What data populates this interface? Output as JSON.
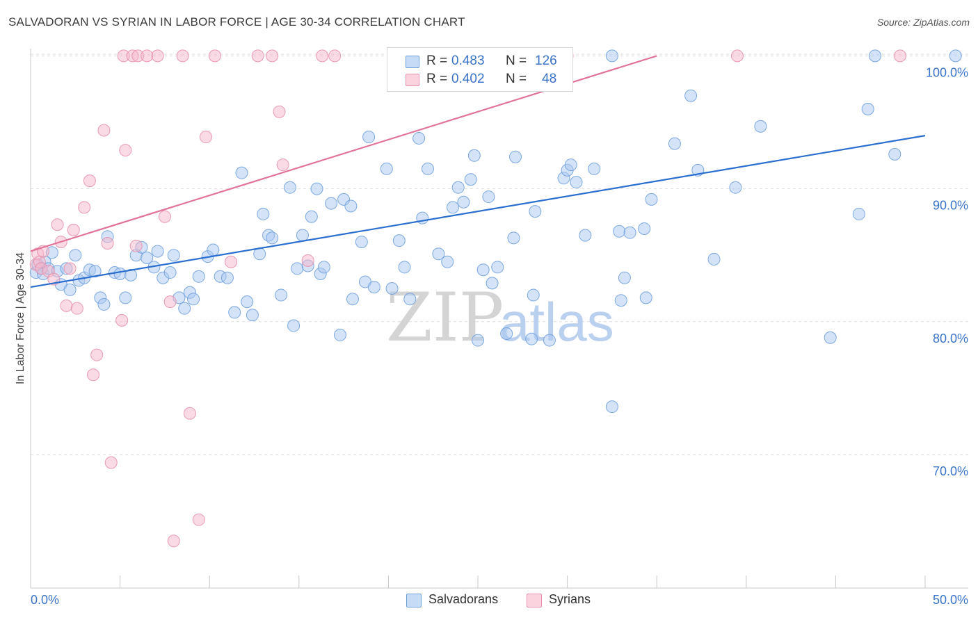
{
  "title": "SALVADORAN VS SYRIAN IN LABOR FORCE | AGE 30-34 CORRELATION CHART",
  "source": "Source: ZipAtlas.com",
  "watermark": {
    "zip": "ZIP",
    "atlas": "atlas"
  },
  "legend_top": [
    {
      "r_label": "R =",
      "r_value": "0.483",
      "n_label": "N =",
      "n_value": "126",
      "color": "#a9c8f0"
    },
    {
      "r_label": "R =",
      "r_value": "0.402",
      "n_label": "N =",
      "n_value": "48",
      "color": "#f5b8cb"
    }
  ],
  "legend_bottom": [
    {
      "label": "Salvadorans",
      "color": "#a9c8f0"
    },
    {
      "label": "Syrians",
      "color": "#f5b8cb"
    }
  ],
  "chart_data": {
    "type": "scatter",
    "title": "SALVADORAN VS SYRIAN IN LABOR FORCE | AGE 30-34 CORRELATION CHART",
    "xlabel": "",
    "ylabel": "In Labor Force | Age 30-34",
    "xlim": [
      0,
      50
    ],
    "ylim": [
      60,
      101
    ],
    "x_ticks": [
      "0.0%",
      "50.0%"
    ],
    "y_ticks": [
      {
        "value": 70,
        "label": "70.0%"
      },
      {
        "value": 80,
        "label": "80.0%"
      },
      {
        "value": 90,
        "label": "90.0%"
      },
      {
        "value": 100,
        "label": "100.0%"
      }
    ],
    "grid": true,
    "legend_position": "bottom",
    "series": [
      {
        "name": "Salvadorans",
        "color": "#6fa0de",
        "fill": "#a9c8f0",
        "trend": {
          "x": [
            0,
            50
          ],
          "y": [
            82.6,
            94.0
          ]
        },
        "points": [
          [
            0.3,
            83.7
          ],
          [
            0.4,
            84.3
          ],
          [
            0.6,
            84.0
          ],
          [
            0.7,
            83.6
          ],
          [
            0.8,
            84.5
          ],
          [
            1.0,
            84.0
          ],
          [
            1.2,
            85.2
          ],
          [
            1.5,
            83.8
          ],
          [
            1.7,
            82.8
          ],
          [
            2.0,
            84.0
          ],
          [
            2.2,
            82.4
          ],
          [
            2.5,
            85.0
          ],
          [
            2.7,
            83.1
          ],
          [
            3.0,
            83.3
          ],
          [
            3.3,
            83.9
          ],
          [
            3.6,
            83.8
          ],
          [
            3.9,
            81.8
          ],
          [
            4.1,
            81.3
          ],
          [
            4.3,
            86.4
          ],
          [
            4.7,
            83.7
          ],
          [
            5.0,
            83.6
          ],
          [
            5.3,
            81.8
          ],
          [
            5.6,
            83.5
          ],
          [
            5.9,
            85.0
          ],
          [
            6.2,
            85.6
          ],
          [
            6.5,
            84.8
          ],
          [
            6.9,
            84.1
          ],
          [
            7.1,
            85.3
          ],
          [
            7.4,
            83.3
          ],
          [
            7.8,
            83.7
          ],
          [
            8.0,
            85.0
          ],
          [
            8.3,
            81.8
          ],
          [
            8.6,
            81.0
          ],
          [
            8.9,
            82.2
          ],
          [
            9.1,
            81.7
          ],
          [
            9.4,
            83.4
          ],
          [
            9.9,
            84.9
          ],
          [
            10.2,
            85.4
          ],
          [
            10.6,
            83.4
          ],
          [
            11.0,
            83.3
          ],
          [
            11.4,
            80.7
          ],
          [
            11.8,
            91.2
          ],
          [
            12.1,
            81.5
          ],
          [
            12.4,
            80.5
          ],
          [
            12.8,
            85.1
          ],
          [
            13.0,
            88.1
          ],
          [
            13.3,
            86.5
          ],
          [
            13.5,
            86.3
          ],
          [
            14.0,
            82.0
          ],
          [
            14.5,
            90.1
          ],
          [
            14.7,
            79.7
          ],
          [
            14.9,
            84.0
          ],
          [
            15.2,
            86.5
          ],
          [
            15.5,
            84.2
          ],
          [
            15.7,
            87.9
          ],
          [
            16.0,
            90.0
          ],
          [
            16.2,
            83.6
          ],
          [
            16.4,
            84.1
          ],
          [
            16.8,
            88.9
          ],
          [
            17.3,
            79.0
          ],
          [
            17.5,
            89.2
          ],
          [
            17.9,
            88.7
          ],
          [
            18.0,
            81.7
          ],
          [
            18.5,
            86.0
          ],
          [
            18.7,
            83.0
          ],
          [
            18.9,
            93.9
          ],
          [
            19.2,
            82.6
          ],
          [
            19.9,
            91.5
          ],
          [
            20.2,
            82.5
          ],
          [
            20.6,
            86.1
          ],
          [
            20.9,
            84.1
          ],
          [
            21.2,
            81.7
          ],
          [
            21.7,
            93.8
          ],
          [
            21.9,
            87.8
          ],
          [
            22.2,
            91.5
          ],
          [
            22.8,
            85.1
          ],
          [
            23.3,
            84.5
          ],
          [
            23.6,
            88.6
          ],
          [
            23.9,
            90.1
          ],
          [
            24.2,
            89.0
          ],
          [
            24.6,
            90.7
          ],
          [
            24.8,
            92.5
          ],
          [
            25.0,
            78.6
          ],
          [
            25.3,
            83.9
          ],
          [
            25.6,
            89.4
          ],
          [
            25.8,
            82.9
          ],
          [
            26.1,
            84.1
          ],
          [
            26.6,
            79.1
          ],
          [
            27.0,
            86.3
          ],
          [
            27.1,
            92.4
          ],
          [
            28.0,
            78.7
          ],
          [
            28.1,
            82.0
          ],
          [
            28.2,
            88.3
          ],
          [
            29.0,
            78.6
          ],
          [
            29.8,
            90.8
          ],
          [
            30.0,
            91.4
          ],
          [
            30.2,
            91.8
          ],
          [
            30.5,
            90.5
          ],
          [
            31.0,
            86.5
          ],
          [
            31.5,
            91.5
          ],
          [
            32.5,
            100.0
          ],
          [
            32.5,
            73.6
          ],
          [
            32.9,
            86.8
          ],
          [
            33.0,
            81.6
          ],
          [
            33.2,
            83.3
          ],
          [
            33.5,
            86.7
          ],
          [
            34.3,
            87.0
          ],
          [
            34.4,
            81.8
          ],
          [
            34.7,
            89.2
          ],
          [
            36.0,
            93.4
          ],
          [
            36.9,
            97.0
          ],
          [
            37.3,
            91.4
          ],
          [
            38.2,
            84.7
          ],
          [
            39.4,
            90.1
          ],
          [
            40.8,
            94.7
          ],
          [
            44.7,
            78.8
          ],
          [
            46.3,
            88.1
          ],
          [
            46.8,
            96.0
          ],
          [
            47.2,
            100.0
          ],
          [
            48.3,
            92.6
          ],
          [
            51.7,
            100.0
          ]
        ]
      },
      {
        "name": "Syrians",
        "color": "#e890ab",
        "fill": "#f5b8cb",
        "trend": {
          "x": [
            0,
            35
          ],
          "y": [
            85.3,
            100.0
          ]
        },
        "points": [
          [
            0.3,
            84.3
          ],
          [
            0.4,
            85.1
          ],
          [
            0.5,
            84.5
          ],
          [
            0.6,
            84.0
          ],
          [
            0.7,
            85.3
          ],
          [
            1.0,
            83.8
          ],
          [
            1.3,
            83.2
          ],
          [
            1.5,
            87.3
          ],
          [
            1.7,
            86.0
          ],
          [
            2.0,
            81.2
          ],
          [
            2.2,
            84.0
          ],
          [
            2.4,
            86.9
          ],
          [
            2.6,
            81.0
          ],
          [
            3.0,
            88.6
          ],
          [
            3.3,
            90.6
          ],
          [
            3.5,
            76.0
          ],
          [
            3.7,
            77.5
          ],
          [
            4.1,
            94.4
          ],
          [
            4.3,
            85.9
          ],
          [
            4.5,
            69.4
          ],
          [
            5.1,
            80.1
          ],
          [
            5.2,
            100.0
          ],
          [
            5.3,
            92.9
          ],
          [
            5.7,
            100.0
          ],
          [
            5.9,
            85.7
          ],
          [
            6.0,
            100.0
          ],
          [
            6.5,
            100.0
          ],
          [
            7.1,
            100.0
          ],
          [
            7.5,
            87.9
          ],
          [
            7.8,
            81.5
          ],
          [
            8.0,
            63.5
          ],
          [
            8.5,
            100.0
          ],
          [
            8.9,
            73.1
          ],
          [
            9.4,
            65.1
          ],
          [
            9.8,
            93.9
          ],
          [
            10.3,
            100.0
          ],
          [
            11.2,
            84.5
          ],
          [
            12.7,
            100.0
          ],
          [
            13.5,
            100.0
          ],
          [
            13.9,
            95.8
          ],
          [
            14.1,
            91.8
          ],
          [
            15.5,
            84.6
          ],
          [
            16.3,
            100.0
          ],
          [
            17.0,
            100.0
          ],
          [
            29.0,
            100.0
          ],
          [
            30.0,
            100.0
          ],
          [
            39.5,
            100.0
          ],
          [
            48.6,
            100.0
          ]
        ]
      }
    ]
  }
}
